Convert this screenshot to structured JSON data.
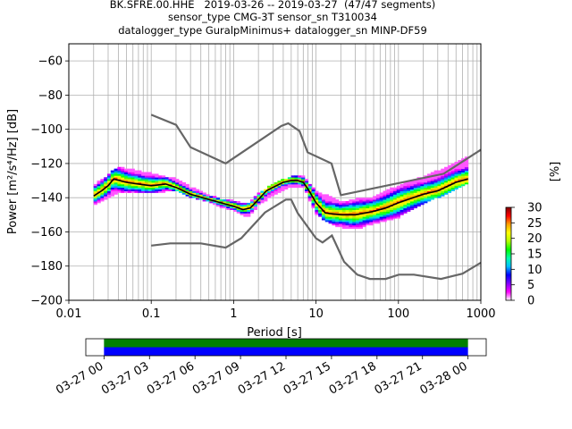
{
  "header": {
    "title_lines": [
      "BK.SFRE.00.HHE   2019-03-26 -- 2019-03-27  (47/47 segments)",
      "sensor_type CMG-3T sensor_sn T310034",
      "datalogger_type GuralpMinimus+ datalogger_sn MINP-DF59"
    ]
  },
  "chart_data": {
    "type": "heatmap",
    "title": "BK.SFRE.00.HHE   2019-03-26 -- 2019-03-27  (47/47 segments)",
    "xlabel": "Period [s]",
    "ylabel": "Power [m²/s⁴/Hz] [dB]",
    "x_scale": "log",
    "xlim": [
      0.01,
      1000
    ],
    "ylim": [
      -200,
      -50
    ],
    "x_ticks": [
      0.01,
      0.1,
      1,
      10,
      100,
      1000
    ],
    "x_tick_labels": [
      "0.01",
      "0.1",
      "1",
      "10",
      "100",
      "1000"
    ],
    "y_ticks": [
      -200,
      -180,
      -160,
      -140,
      -120,
      -100,
      -80,
      -60
    ],
    "y_tick_labels": [
      "−200",
      "−180",
      "−160",
      "−140",
      "−120",
      "−100",
      "−80",
      "−60"
    ],
    "grid": true,
    "colorbar": {
      "label": "[%]",
      "range": [
        0,
        30
      ],
      "ticks": [
        0,
        5,
        10,
        15,
        20,
        25,
        30
      ],
      "colormap": [
        "#ffffff",
        "#ff00ff",
        "#7f00ff",
        "#0000ff",
        "#00bfff",
        "#00ffaa",
        "#00ff00",
        "#b4ff00",
        "#ffff00",
        "#ffa000",
        "#ff0000",
        "#800000"
      ]
    },
    "mean_curve": {
      "period": [
        0.02,
        0.025,
        0.03,
        0.035,
        0.05,
        0.07,
        0.1,
        0.15,
        0.2,
        0.3,
        0.5,
        0.7,
        1,
        1.3,
        1.6,
        2,
        2.5,
        3,
        4,
        5,
        6,
        7,
        8,
        10,
        13,
        20,
        30,
        50,
        70,
        100,
        150,
        200,
        300,
        500,
        700
      ],
      "power": [
        -139,
        -136,
        -133,
        -129,
        -131,
        -132,
        -133,
        -132,
        -134,
        -138,
        -141,
        -143,
        -145,
        -147,
        -146,
        -141,
        -136,
        -134,
        -131,
        -130,
        -130,
        -131,
        -135,
        -143,
        -149,
        -150,
        -150,
        -148,
        -146,
        -143,
        -140,
        -138,
        -136,
        -131,
        -129
      ]
    },
    "psd_spread": {
      "period": [
        0.02,
        0.03,
        0.04,
        0.06,
        0.1,
        0.15,
        0.2,
        0.3,
        0.5,
        0.7,
        1,
        1.5,
        2,
        3,
        5,
        7,
        10,
        15,
        20,
        30,
        50,
        100,
        200,
        400,
        700
      ],
      "upper": [
        -133,
        -127,
        -122,
        -124,
        -126,
        -128,
        -129,
        -134,
        -139,
        -141,
        -142,
        -144,
        -138,
        -132,
        -128,
        -128,
        -136,
        -140,
        -143,
        -141,
        -140,
        -133,
        -128,
        -122,
        -116
      ],
      "lower": [
        -145,
        -141,
        -138,
        -137,
        -138,
        -137,
        -136,
        -140,
        -143,
        -146,
        -148,
        -152,
        -145,
        -139,
        -134,
        -134,
        -150,
        -156,
        -158,
        -159,
        -156,
        -152,
        -144,
        -138,
        -132
      ]
    },
    "noise_models": [
      {
        "period": [
          0.1,
          0.2,
          0.3,
          0.8,
          3.8,
          4.6,
          6.3,
          7.9,
          15.4,
          20,
          354,
          1000
        ],
        "power": [
          -91.5,
          -97.4,
          -110.5,
          -120,
          -98,
          -96.5,
          -101,
          -113.5,
          -120,
          -138.5,
          -126,
          -112
        ]
      },
      {
        "period": [
          0.1,
          0.17,
          0.4,
          0.8,
          1.24,
          2.4,
          4.3,
          5,
          6,
          10,
          12,
          15.6,
          21.9,
          31.6,
          45,
          70,
          101,
          154,
          328,
          600,
          1000
        ],
        "power": [
          -168,
          -166.7,
          -166.7,
          -169.2,
          -163.7,
          -148.6,
          -141.1,
          -141.1,
          -149,
          -163.8,
          -166.2,
          -162.1,
          -177.5,
          -185,
          -187.5,
          -187.5,
          -185,
          -185,
          -187.5,
          -184.4,
          -178
        ]
      }
    ],
    "timeline": {
      "tick_labels": [
        "03-27 00",
        "03-27 03",
        "03-27 06",
        "03-27 09",
        "03-27 12",
        "03-27 15",
        "03-27 18",
        "03-27 21",
        "03-28 00"
      ],
      "tick_hours": [
        0,
        3,
        6,
        9,
        12,
        15,
        18,
        21,
        24
      ],
      "range_hours": [
        -1.2,
        25.2
      ],
      "coverage_hours": [
        0,
        24
      ],
      "rows": [
        {
          "color": "#008000"
        },
        {
          "color": "#0000ff"
        }
      ]
    }
  }
}
